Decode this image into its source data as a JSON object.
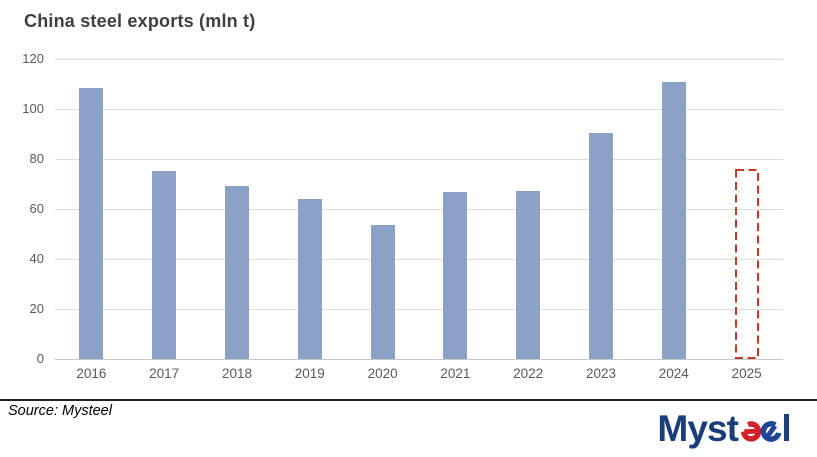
{
  "title": "China steel exports (mln t)",
  "chart_data": {
    "type": "bar",
    "title": "China steel exports (mln t)",
    "categories": [
      "2016",
      "2017",
      "2018",
      "2019",
      "2020",
      "2021",
      "2022",
      "2023",
      "2024",
      "2025"
    ],
    "values": [
      108.4,
      75.4,
      69.3,
      64.2,
      53.7,
      66.9,
      67.3,
      90.3,
      110.7,
      76
    ],
    "ylim": [
      0,
      120
    ],
    "yticks": [
      0,
      20,
      40,
      60,
      80,
      100,
      120
    ],
    "xlabel": "",
    "ylabel": "",
    "grid": true,
    "legend": "none",
    "forecast": {
      "category": "2025",
      "style": "dashed-outline"
    }
  },
  "colors": {
    "bar_fill": "#8BA1C5",
    "forecast_outline": "#C03B26",
    "gridline": "#DCDCDC",
    "axis_line": "#C8C8C8",
    "title_text": "#3F3F3F",
    "tick_text": "#595959",
    "logo_navy": "#1A3E7B",
    "logo_blue": "#1D4796",
    "logo_red": "#D2232A"
  },
  "footer": {
    "source": "Source: Mysteel",
    "logo": {
      "alt": "Mysteel",
      "prefix": "Myst",
      "suffix": "l"
    }
  }
}
